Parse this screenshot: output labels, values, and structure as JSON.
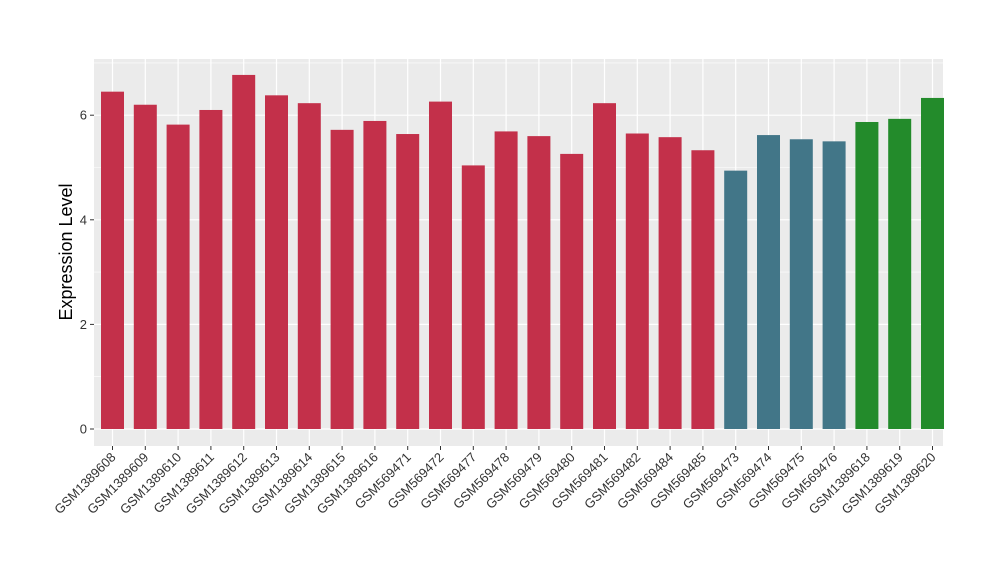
{
  "chart_data": {
    "type": "bar",
    "title": "",
    "xlabel": "",
    "ylabel": "Expression Level",
    "ylim": [
      0,
      7
    ],
    "yticks": [
      0,
      2,
      4,
      6
    ],
    "grid": true,
    "legend": "none",
    "categories": [
      "GSM1389608",
      "GSM1389609",
      "GSM1389610",
      "GSM1389611",
      "GSM1389612",
      "GSM1389613",
      "GSM1389614",
      "GSM1389615",
      "GSM1389616",
      "GSM569471",
      "GSM569472",
      "GSM569477",
      "GSM569478",
      "GSM569479",
      "GSM569480",
      "GSM569481",
      "GSM569482",
      "GSM569484",
      "GSM569485",
      "GSM569473",
      "GSM569474",
      "GSM569475",
      "GSM569476",
      "GSM1389618",
      "GSM1389619",
      "GSM1389620"
    ],
    "values": [
      6.45,
      6.2,
      5.82,
      6.1,
      6.77,
      6.38,
      6.23,
      5.72,
      5.89,
      5.64,
      6.26,
      5.04,
      5.69,
      5.6,
      5.26,
      6.23,
      5.65,
      5.58,
      5.33,
      4.94,
      5.62,
      5.54,
      5.5,
      5.87,
      5.93,
      6.33
    ],
    "groups": [
      0,
      0,
      0,
      0,
      0,
      0,
      0,
      0,
      0,
      0,
      0,
      0,
      0,
      0,
      0,
      0,
      0,
      0,
      0,
      1,
      1,
      1,
      1,
      2,
      2,
      2
    ],
    "group_colors": [
      "#c3304a",
      "#427688",
      "#238b2b"
    ],
    "panel_background": "#ebebeb",
    "grid_color": "#ffffff"
  }
}
